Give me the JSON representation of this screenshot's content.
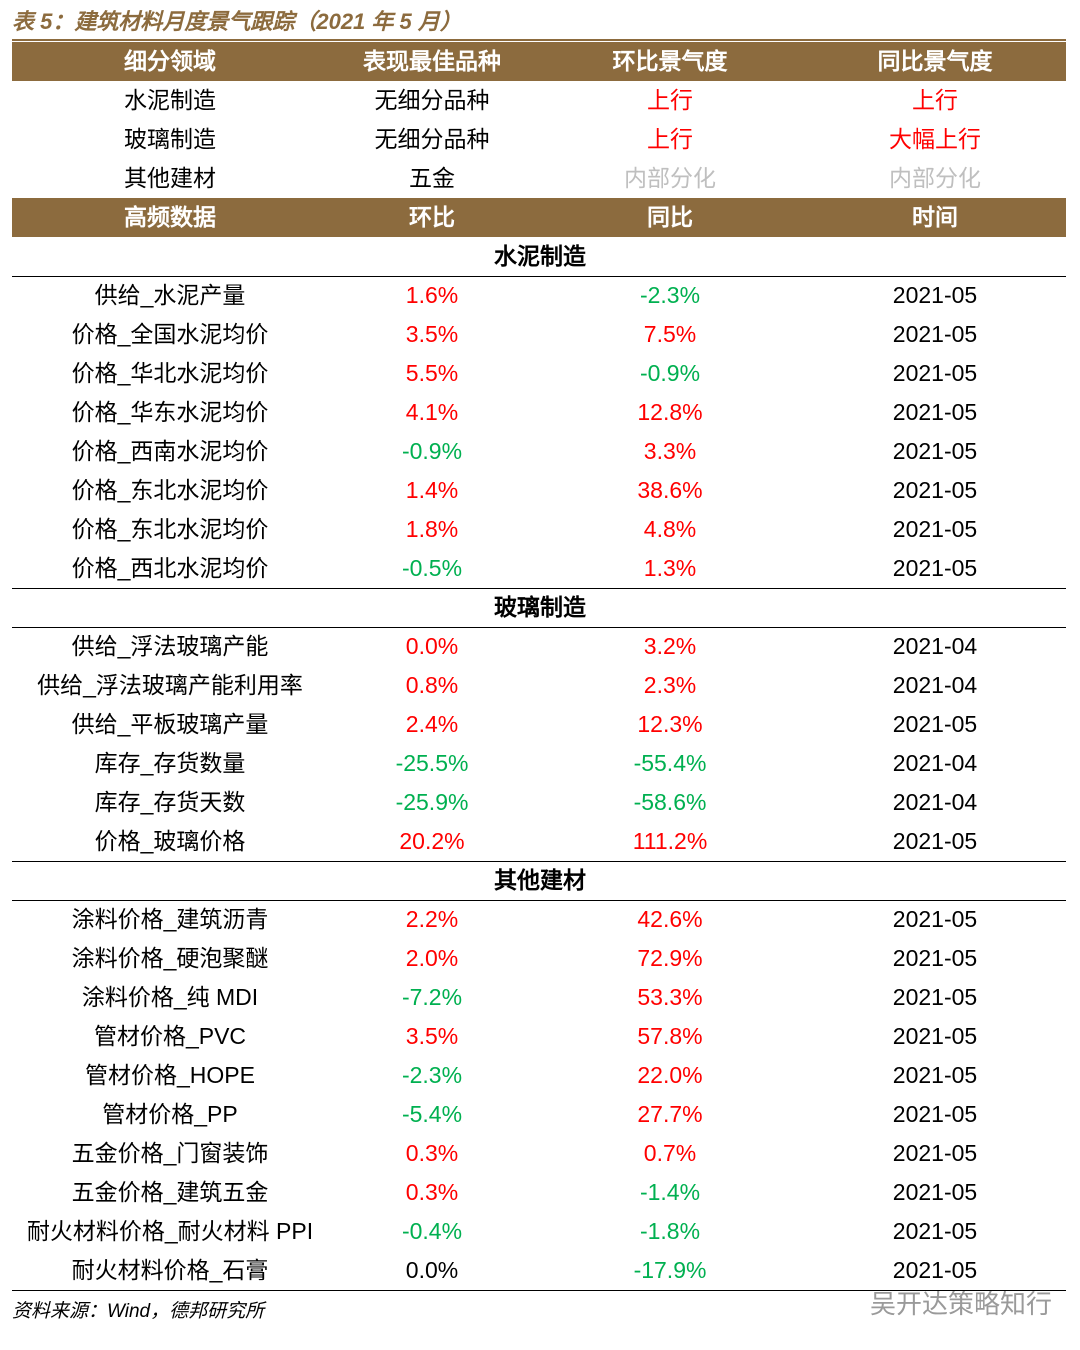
{
  "title": "表 5：建筑材料月度景气跟踪（2021 年 5 月）",
  "table": {
    "header": [
      "细分领域",
      "表现最佳品种",
      "环比景气度",
      "同比景气度"
    ],
    "summary": [
      {
        "cells": [
          "水泥制造",
          "无细分品种",
          "上行",
          "上行"
        ],
        "colors": [
          "#000000",
          "#000000",
          "#ff0000",
          "#ff0000"
        ]
      },
      {
        "cells": [
          "玻璃制造",
          "无细分品种",
          "上行",
          "大幅上行"
        ],
        "colors": [
          "#000000",
          "#000000",
          "#ff0000",
          "#ff0000"
        ]
      },
      {
        "cells": [
          "其他建材",
          "五金",
          "内部分化",
          "内部分化"
        ],
        "colors": [
          "#000000",
          "#000000",
          "#bfbfbf",
          "#bfbfbf"
        ]
      }
    ],
    "header2": [
      "高频数据",
      "环比",
      "同比",
      "时间"
    ],
    "sections": [
      {
        "name": "水泥制造",
        "rows": [
          {
            "cells": [
              "供给_水泥产量",
              "1.6%",
              "-2.3%",
              "2021-05"
            ],
            "colors": [
              "#000000",
              "#ff0000",
              "#00b050",
              "#000000"
            ]
          },
          {
            "cells": [
              "价格_全国水泥均价",
              "3.5%",
              "7.5%",
              "2021-05"
            ],
            "colors": [
              "#000000",
              "#ff0000",
              "#ff0000",
              "#000000"
            ]
          },
          {
            "cells": [
              "价格_华北水泥均价",
              "5.5%",
              "-0.9%",
              "2021-05"
            ],
            "colors": [
              "#000000",
              "#ff0000",
              "#00b050",
              "#000000"
            ]
          },
          {
            "cells": [
              "价格_华东水泥均价",
              "4.1%",
              "12.8%",
              "2021-05"
            ],
            "colors": [
              "#000000",
              "#ff0000",
              "#ff0000",
              "#000000"
            ]
          },
          {
            "cells": [
              "价格_西南水泥均价",
              "-0.9%",
              "3.3%",
              "2021-05"
            ],
            "colors": [
              "#000000",
              "#00b050",
              "#ff0000",
              "#000000"
            ]
          },
          {
            "cells": [
              "价格_东北水泥均价",
              "1.4%",
              "38.6%",
              "2021-05"
            ],
            "colors": [
              "#000000",
              "#ff0000",
              "#ff0000",
              "#000000"
            ]
          },
          {
            "cells": [
              "价格_东北水泥均价",
              "1.8%",
              "4.8%",
              "2021-05"
            ],
            "colors": [
              "#000000",
              "#ff0000",
              "#ff0000",
              "#000000"
            ]
          },
          {
            "cells": [
              "价格_西北水泥均价",
              "-0.5%",
              "1.3%",
              "2021-05"
            ],
            "colors": [
              "#000000",
              "#00b050",
              "#ff0000",
              "#000000"
            ]
          }
        ]
      },
      {
        "name": "玻璃制造",
        "rows": [
          {
            "cells": [
              "供给_浮法玻璃产能",
              "0.0%",
              "3.2%",
              "2021-04"
            ],
            "colors": [
              "#000000",
              "#ff0000",
              "#ff0000",
              "#000000"
            ]
          },
          {
            "cells": [
              "供给_浮法玻璃产能利用率",
              "0.8%",
              "2.3%",
              "2021-04"
            ],
            "colors": [
              "#000000",
              "#ff0000",
              "#ff0000",
              "#000000"
            ]
          },
          {
            "cells": [
              "供给_平板玻璃产量",
              "2.4%",
              "12.3%",
              "2021-05"
            ],
            "colors": [
              "#000000",
              "#ff0000",
              "#ff0000",
              "#000000"
            ]
          },
          {
            "cells": [
              "库存_存货数量",
              "-25.5%",
              "-55.4%",
              "2021-04"
            ],
            "colors": [
              "#000000",
              "#00b050",
              "#00b050",
              "#000000"
            ]
          },
          {
            "cells": [
              "库存_存货天数",
              "-25.9%",
              "-58.6%",
              "2021-04"
            ],
            "colors": [
              "#000000",
              "#00b050",
              "#00b050",
              "#000000"
            ]
          },
          {
            "cells": [
              "价格_玻璃价格",
              "20.2%",
              "111.2%",
              "2021-05"
            ],
            "colors": [
              "#000000",
              "#ff0000",
              "#ff0000",
              "#000000"
            ]
          }
        ]
      },
      {
        "name": "其他建材",
        "rows": [
          {
            "cells": [
              "涂料价格_建筑沥青",
              "2.2%",
              "42.6%",
              "2021-05"
            ],
            "colors": [
              "#000000",
              "#ff0000",
              "#ff0000",
              "#000000"
            ]
          },
          {
            "cells": [
              "涂料价格_硬泡聚醚",
              "2.0%",
              "72.9%",
              "2021-05"
            ],
            "colors": [
              "#000000",
              "#ff0000",
              "#ff0000",
              "#000000"
            ]
          },
          {
            "cells": [
              "涂料价格_纯 MDI",
              "-7.2%",
              "53.3%",
              "2021-05"
            ],
            "colors": [
              "#000000",
              "#00b050",
              "#ff0000",
              "#000000"
            ]
          },
          {
            "cells": [
              "管材价格_PVC",
              "3.5%",
              "57.8%",
              "2021-05"
            ],
            "colors": [
              "#000000",
              "#ff0000",
              "#ff0000",
              "#000000"
            ]
          },
          {
            "cells": [
              "管材价格_HOPE",
              "-2.3%",
              "22.0%",
              "2021-05"
            ],
            "colors": [
              "#000000",
              "#00b050",
              "#ff0000",
              "#000000"
            ]
          },
          {
            "cells": [
              "管材价格_PP",
              "-5.4%",
              "27.7%",
              "2021-05"
            ],
            "colors": [
              "#000000",
              "#00b050",
              "#ff0000",
              "#000000"
            ]
          },
          {
            "cells": [
              "五金价格_门窗装饰",
              "0.3%",
              "0.7%",
              "2021-05"
            ],
            "colors": [
              "#000000",
              "#ff0000",
              "#ff0000",
              "#000000"
            ]
          },
          {
            "cells": [
              "五金价格_建筑五金",
              "0.3%",
              "-1.4%",
              "2021-05"
            ],
            "colors": [
              "#000000",
              "#ff0000",
              "#00b050",
              "#000000"
            ]
          },
          {
            "cells": [
              "耐火材料价格_耐火材料 PPI",
              "-0.4%",
              "-1.8%",
              "2021-05"
            ],
            "colors": [
              "#000000",
              "#00b050",
              "#00b050",
              "#000000"
            ]
          },
          {
            "cells": [
              "耐火材料价格_石膏",
              "0.0%",
              "-17.9%",
              "2021-05"
            ],
            "colors": [
              "#000000",
              "#000000",
              "#00b050",
              "#000000"
            ]
          }
        ]
      }
    ]
  },
  "source": "资料来源：Wind，德邦研究所",
  "watermark": "吴开达策略知行"
}
